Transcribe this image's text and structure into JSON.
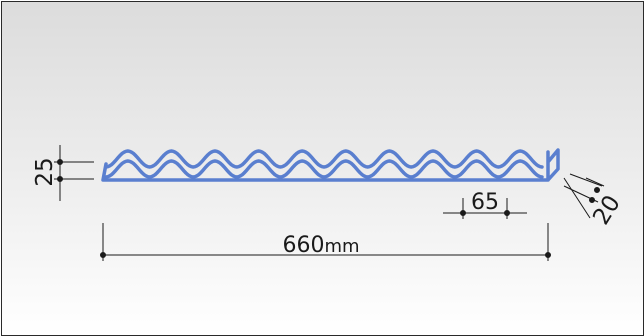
{
  "diagram": {
    "colors": {
      "profile": "#5a7fcf",
      "dimension_line": "#1a1a1a"
    },
    "dimensions": {
      "length": "660",
      "length_unit": "mm",
      "height": "25",
      "wave_pitch": "65",
      "depth": "20"
    }
  }
}
